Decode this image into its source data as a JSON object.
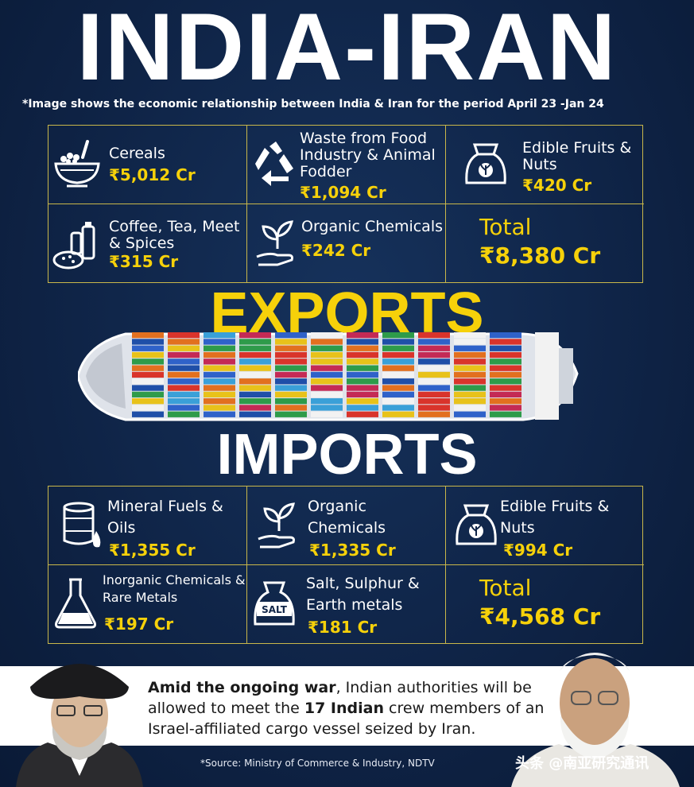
{
  "title": "INDIA-IRAN",
  "subtitle": "*Image shows the economic relationship between India & Iran for the period April 23 -Jan 24",
  "exports": {
    "heading": "EXPORTS",
    "items": [
      {
        "label": "Cereals",
        "value": "₹5,012 Cr",
        "icon": "bowl-icon"
      },
      {
        "label": "Waste from Food Industry & Animal Fodder",
        "value": "₹1,094 Cr",
        "icon": "recycle-icon"
      },
      {
        "label": "Edible Fruits & Nuts",
        "value": "₹420 Cr",
        "icon": "sack-icon"
      },
      {
        "label": "Coffee, Tea, Meet & Spices",
        "value": "₹315 Cr",
        "icon": "spices-icon"
      },
      {
        "label": "Organic Chemicals",
        "value": "₹242 Cr",
        "icon": "plant-hand-icon"
      }
    ],
    "total_label": "Total",
    "total_value": "₹8,380 Cr"
  },
  "imports": {
    "heading": "IMPORTS",
    "items": [
      {
        "label": "Mineral Fuels & Oils",
        "value": "₹1,355 Cr",
        "icon": "oil-barrel-icon"
      },
      {
        "label": "Organic Chemicals",
        "value": "₹1,335 Cr",
        "icon": "plant-hand-icon"
      },
      {
        "label": "Edible Fruits & Nuts",
        "value": "₹994 Cr",
        "icon": "sack-icon"
      },
      {
        "label": "Inorganic Chemicals & Rare Metals",
        "value": "₹197 Cr",
        "icon": "flask-icon"
      },
      {
        "label": "Salt, Sulphur & Earth metals",
        "value": "₹181 Cr",
        "icon": "salt-bag-icon"
      }
    ],
    "total_label": "Total",
    "total_value": "₹4,568 Cr"
  },
  "news": {
    "lead": "Amid the ongoing war",
    "text_1": ", Indian authorities will be allowed to meet the ",
    "highlight": "17 Indian",
    "text_2": " crew members of an Israel-affiliated cargo vessel seized by Iran."
  },
  "source": "*Source: Ministry of Commerce & Industry, NDTV",
  "watermark": "头条 @南亚研究通讯",
  "icon_svg": "salt-text",
  "salt_label": "SALT",
  "colors": {
    "accent": "#f6d10a",
    "background": "#0f2447",
    "grid_border": "#c9b74a"
  }
}
